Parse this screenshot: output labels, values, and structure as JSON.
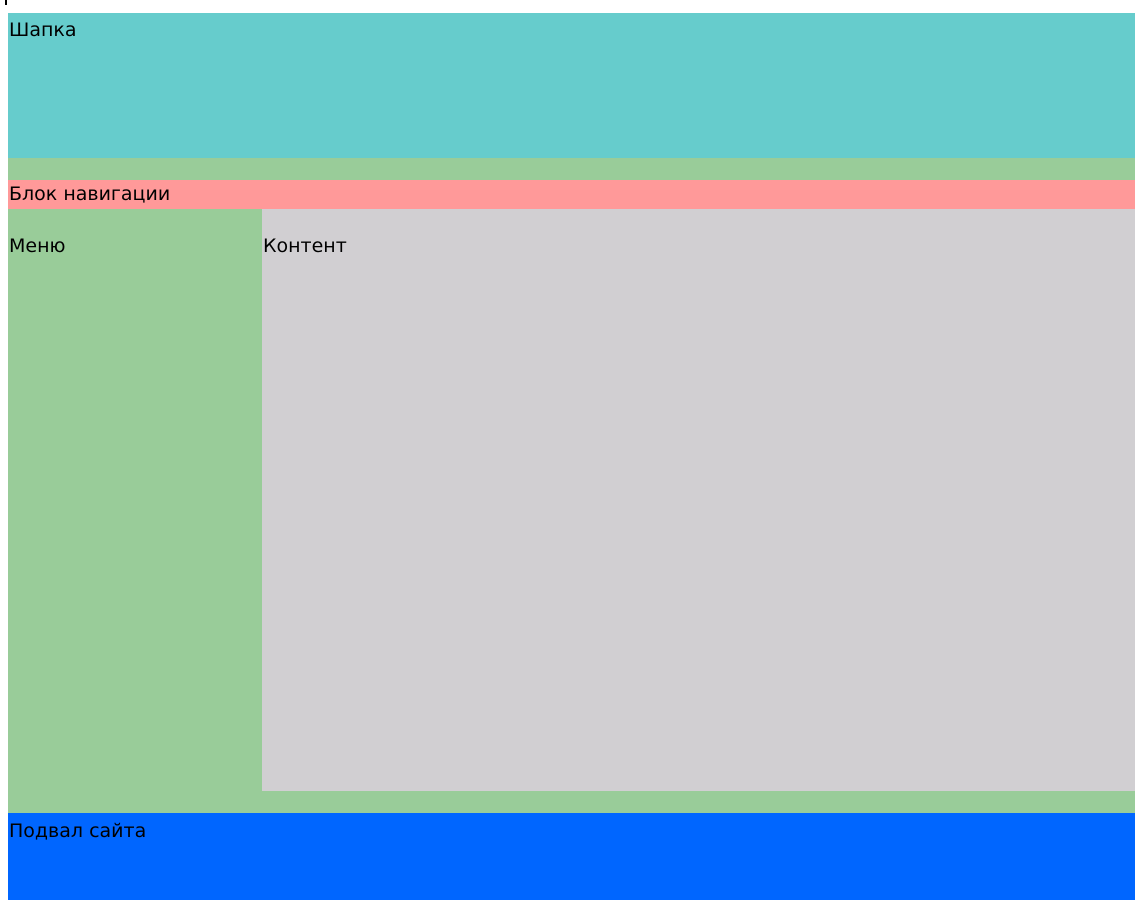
{
  "layout": {
    "header": {
      "label": "Шапка"
    },
    "navigation": {
      "label": "Блок навигации"
    },
    "menu": {
      "label": "Меню"
    },
    "content": {
      "label": "Контент"
    },
    "footer": {
      "label": "Подвал сайта"
    }
  },
  "colors": {
    "header": "#66cccc",
    "navigation": "#ff9999",
    "menu": "#99cc99",
    "content": "#d1cfd2",
    "footer": "#0066ff",
    "wrapper": "#99cc99"
  }
}
